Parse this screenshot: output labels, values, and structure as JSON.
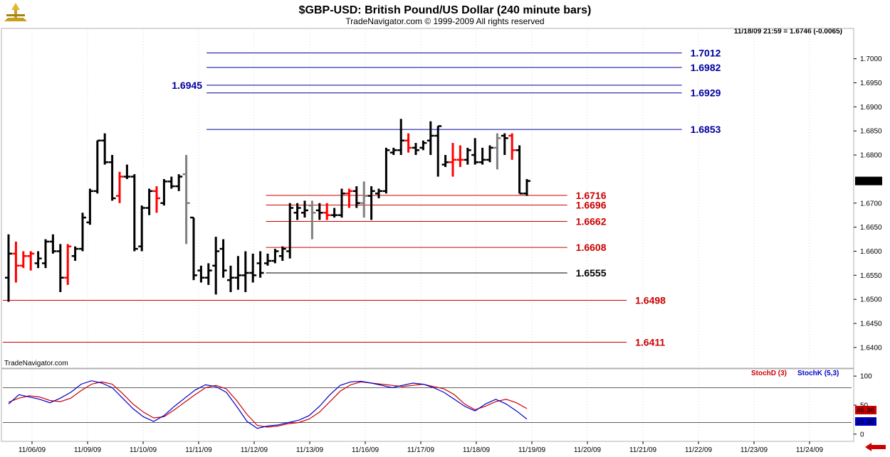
{
  "title": "$GBP-USD:  British Pound/US Dollar  (240 minute bars)",
  "subtitle": "TradeNavigator.com © 1999-2009 All rights reserved",
  "watermark": "TradeNavigator.com",
  "last_bar_info": "11/18/09 21:59 = 1.6746 (-0.0065)",
  "colors": {
    "up": "#000000",
    "down": "#ff0000",
    "neutral": "#808080",
    "blue_level": "#0000a0",
    "red_level": "#cc0000",
    "stoch_d": "#cc0000",
    "stoch_k": "#0000cc"
  },
  "chart_data": [
    {
      "type": "ohlc",
      "y_range": [
        1.636,
        1.706
      ],
      "y_ticks": [
        "1.7000",
        "1.6950",
        "1.6900",
        "1.6850",
        "1.6800",
        "1.6700",
        "1.6650",
        "1.6600",
        "1.6550",
        "1.6500",
        "1.6450",
        "1.6400"
      ],
      "y_tick_values": [
        1.7,
        1.695,
        1.69,
        1.685,
        1.68,
        1.67,
        1.665,
        1.66,
        1.655,
        1.65,
        1.645,
        1.64
      ],
      "last_price_label": "1.6746",
      "last_price": 1.6746,
      "x_dates": [
        "11/06/09",
        "11/09/09",
        "11/10/09",
        "11/11/09",
        "11/12/09",
        "11/13/09",
        "11/16/09",
        "11/17/09",
        "11/18/09",
        "11/19/09",
        "11/20/09",
        "11/21/09",
        "11/22/09",
        "11/23/09",
        "11/24/09"
      ],
      "bars": [
        {
          "o": 1.6545,
          "h": 1.6635,
          "l": 1.6495,
          "c": 1.6595,
          "col": "up"
        },
        {
          "o": 1.6595,
          "h": 1.662,
          "l": 1.6535,
          "c": 1.657,
          "col": "down"
        },
        {
          "o": 1.657,
          "h": 1.66,
          "l": 1.6565,
          "c": 1.659,
          "col": "down"
        },
        {
          "o": 1.659,
          "h": 1.66,
          "l": 1.656,
          "c": 1.6595,
          "col": "down"
        },
        {
          "o": 1.6575,
          "h": 1.66,
          "l": 1.6565,
          "c": 1.6585,
          "col": "up"
        },
        {
          "o": 1.6575,
          "h": 1.6625,
          "l": 1.6565,
          "c": 1.662,
          "col": "up"
        },
        {
          "o": 1.662,
          "h": 1.6635,
          "l": 1.6595,
          "c": 1.66,
          "col": "up"
        },
        {
          "o": 1.66,
          "h": 1.6615,
          "l": 1.6515,
          "c": 1.6545,
          "col": "up"
        },
        {
          "o": 1.6545,
          "h": 1.6615,
          "l": 1.653,
          "c": 1.661,
          "col": "down"
        },
        {
          "o": 1.659,
          "h": 1.661,
          "l": 1.658,
          "c": 1.6605,
          "col": "up"
        },
        {
          "o": 1.6605,
          "h": 1.668,
          "l": 1.66,
          "c": 1.667,
          "col": "up"
        },
        {
          "o": 1.666,
          "h": 1.673,
          "l": 1.6655,
          "c": 1.6725,
          "col": "up"
        },
        {
          "o": 1.6725,
          "h": 1.683,
          "l": 1.672,
          "c": 1.683,
          "col": "up"
        },
        {
          "o": 1.683,
          "h": 1.6845,
          "l": 1.678,
          "c": 1.6785,
          "col": "up"
        },
        {
          "o": 1.6785,
          "h": 1.68,
          "l": 1.6705,
          "c": 1.671,
          "col": "up"
        },
        {
          "o": 1.6715,
          "h": 1.6765,
          "l": 1.67,
          "c": 1.6755,
          "col": "down"
        },
        {
          "o": 1.6755,
          "h": 1.678,
          "l": 1.675,
          "c": 1.6755,
          "col": "up"
        },
        {
          "o": 1.6755,
          "h": 1.676,
          "l": 1.66,
          "c": 1.6605,
          "col": "up"
        },
        {
          "o": 1.661,
          "h": 1.6695,
          "l": 1.66,
          "c": 1.669,
          "col": "up"
        },
        {
          "o": 1.669,
          "h": 1.673,
          "l": 1.6675,
          "c": 1.6725,
          "col": "up"
        },
        {
          "o": 1.6725,
          "h": 1.6735,
          "l": 1.668,
          "c": 1.671,
          "col": "down"
        },
        {
          "o": 1.67,
          "h": 1.675,
          "l": 1.6695,
          "c": 1.6745,
          "col": "up"
        },
        {
          "o": 1.6745,
          "h": 1.6755,
          "l": 1.673,
          "c": 1.6735,
          "col": "up"
        },
        {
          "o": 1.6735,
          "h": 1.676,
          "l": 1.6725,
          "c": 1.6755,
          "col": "up"
        },
        {
          "o": 1.676,
          "h": 1.68,
          "l": 1.6615,
          "c": 1.67,
          "col": "neutral"
        },
        {
          "o": 1.667,
          "h": 1.667,
          "l": 1.654,
          "c": 1.655,
          "col": "up"
        },
        {
          "o": 1.656,
          "h": 1.657,
          "l": 1.6535,
          "c": 1.6545,
          "col": "up"
        },
        {
          "o": 1.6545,
          "h": 1.6575,
          "l": 1.653,
          "c": 1.656,
          "col": "up"
        },
        {
          "o": 1.657,
          "h": 1.663,
          "l": 1.651,
          "c": 1.66,
          "col": "up"
        },
        {
          "o": 1.6605,
          "h": 1.6625,
          "l": 1.6545,
          "c": 1.656,
          "col": "up"
        },
        {
          "o": 1.654,
          "h": 1.657,
          "l": 1.6515,
          "c": 1.6545,
          "col": "up"
        },
        {
          "o": 1.6545,
          "h": 1.659,
          "l": 1.652,
          "c": 1.655,
          "col": "up"
        },
        {
          "o": 1.655,
          "h": 1.66,
          "l": 1.6515,
          "c": 1.6555,
          "col": "up"
        },
        {
          "o": 1.6555,
          "h": 1.6595,
          "l": 1.6535,
          "c": 1.655,
          "col": "up"
        },
        {
          "o": 1.6575,
          "h": 1.66,
          "l": 1.6545,
          "c": 1.6555,
          "col": "up"
        },
        {
          "o": 1.6575,
          "h": 1.6595,
          "l": 1.657,
          "c": 1.658,
          "col": "up"
        },
        {
          "o": 1.658,
          "h": 1.6605,
          "l": 1.6575,
          "c": 1.66,
          "col": "up"
        },
        {
          "o": 1.659,
          "h": 1.661,
          "l": 1.658,
          "c": 1.6605,
          "col": "up"
        },
        {
          "o": 1.66,
          "h": 1.67,
          "l": 1.6585,
          "c": 1.669,
          "col": "up"
        },
        {
          "o": 1.668,
          "h": 1.67,
          "l": 1.6665,
          "c": 1.669,
          "col": "up"
        },
        {
          "o": 1.668,
          "h": 1.6705,
          "l": 1.667,
          "c": 1.6685,
          "col": "up"
        },
        {
          "o": 1.6695,
          "h": 1.6705,
          "l": 1.6625,
          "c": 1.668,
          "col": "neutral"
        },
        {
          "o": 1.6685,
          "h": 1.67,
          "l": 1.6665,
          "c": 1.668,
          "col": "up"
        },
        {
          "o": 1.668,
          "h": 1.67,
          "l": 1.6665,
          "c": 1.6675,
          "col": "down"
        },
        {
          "o": 1.6675,
          "h": 1.669,
          "l": 1.667,
          "c": 1.6675,
          "col": "up"
        },
        {
          "o": 1.6675,
          "h": 1.673,
          "l": 1.667,
          "c": 1.672,
          "col": "up"
        },
        {
          "o": 1.672,
          "h": 1.673,
          "l": 1.669,
          "c": 1.6725,
          "col": "down"
        },
        {
          "o": 1.6725,
          "h": 1.6735,
          "l": 1.669,
          "c": 1.67,
          "col": "up"
        },
        {
          "o": 1.67,
          "h": 1.6745,
          "l": 1.667,
          "c": 1.6715,
          "col": "neutral"
        },
        {
          "o": 1.6715,
          "h": 1.6735,
          "l": 1.6665,
          "c": 1.6725,
          "col": "up"
        },
        {
          "o": 1.672,
          "h": 1.673,
          "l": 1.671,
          "c": 1.6725,
          "col": "up"
        },
        {
          "o": 1.6725,
          "h": 1.6815,
          "l": 1.672,
          "c": 1.681,
          "col": "up"
        },
        {
          "o": 1.6805,
          "h": 1.6815,
          "l": 1.68,
          "c": 1.681,
          "col": "up"
        },
        {
          "o": 1.681,
          "h": 1.6875,
          "l": 1.68,
          "c": 1.683,
          "col": "up"
        },
        {
          "o": 1.683,
          "h": 1.6845,
          "l": 1.6805,
          "c": 1.6815,
          "col": "down"
        },
        {
          "o": 1.6815,
          "h": 1.6825,
          "l": 1.68,
          "c": 1.681,
          "col": "up"
        },
        {
          "o": 1.6815,
          "h": 1.683,
          "l": 1.681,
          "c": 1.6825,
          "col": "up"
        },
        {
          "o": 1.683,
          "h": 1.687,
          "l": 1.68,
          "c": 1.684,
          "col": "up"
        },
        {
          "o": 1.684,
          "h": 1.686,
          "l": 1.6755,
          "c": 1.686,
          "col": "up"
        },
        {
          "o": 1.678,
          "h": 1.68,
          "l": 1.6775,
          "c": 1.6785,
          "col": "up"
        },
        {
          "o": 1.6785,
          "h": 1.6825,
          "l": 1.6755,
          "c": 1.679,
          "col": "down"
        },
        {
          "o": 1.679,
          "h": 1.682,
          "l": 1.6775,
          "c": 1.679,
          "col": "down"
        },
        {
          "o": 1.679,
          "h": 1.6815,
          "l": 1.678,
          "c": 1.681,
          "col": "up"
        },
        {
          "o": 1.68,
          "h": 1.6835,
          "l": 1.678,
          "c": 1.6785,
          "col": "up"
        },
        {
          "o": 1.6785,
          "h": 1.6815,
          "l": 1.678,
          "c": 1.679,
          "col": "up"
        },
        {
          "o": 1.679,
          "h": 1.682,
          "l": 1.6785,
          "c": 1.6815,
          "col": "up"
        },
        {
          "o": 1.6815,
          "h": 1.6845,
          "l": 1.677,
          "c": 1.6835,
          "col": "neutral"
        },
        {
          "o": 1.684,
          "h": 1.6845,
          "l": 1.68,
          "c": 1.6835,
          "col": "up"
        },
        {
          "o": 1.684,
          "h": 1.6845,
          "l": 1.679,
          "c": 1.681,
          "col": "down"
        },
        {
          "o": 1.681,
          "h": 1.682,
          "l": 1.672,
          "c": 1.672,
          "col": "up"
        },
        {
          "o": 1.672,
          "h": 1.675,
          "l": 1.6715,
          "c": 1.6746,
          "col": "up"
        }
      ],
      "levels": [
        {
          "value": 1.7012,
          "label": "1.7012",
          "color": "blue",
          "from": 0.24,
          "to": 0.8,
          "label_side": "right"
        },
        {
          "value": 1.6982,
          "label": "1.6982",
          "color": "blue",
          "from": 0.24,
          "to": 0.8,
          "label_side": "right"
        },
        {
          "value": 1.6945,
          "label": "1.6945",
          "color": "blue",
          "from": 0.24,
          "to": 0.8,
          "label_side": "left"
        },
        {
          "value": 1.6929,
          "label": "1.6929",
          "color": "blue",
          "from": 0.24,
          "to": 0.8,
          "label_side": "right"
        },
        {
          "value": 1.6853,
          "label": "1.6853",
          "color": "blue",
          "from": 0.24,
          "to": 0.8,
          "label_side": "right"
        },
        {
          "value": 1.6716,
          "label": "1.6716",
          "color": "red",
          "from": 0.31,
          "to": 0.665,
          "label_side": "right"
        },
        {
          "value": 1.6696,
          "label": "1.6696",
          "color": "red",
          "from": 0.31,
          "to": 0.665,
          "label_side": "right"
        },
        {
          "value": 1.6662,
          "label": "1.6662",
          "color": "red",
          "from": 0.31,
          "to": 0.665,
          "label_side": "right"
        },
        {
          "value": 1.6608,
          "label": "1.6608",
          "color": "red",
          "from": 0.31,
          "to": 0.665,
          "label_side": "right"
        },
        {
          "value": 1.6555,
          "label": "1.6555",
          "color": "black",
          "from": 0.31,
          "to": 0.665,
          "label_side": "right"
        },
        {
          "value": 1.6498,
          "label": "1.6498",
          "color": "red",
          "from": 0.0,
          "to": 0.735,
          "label_side": "right"
        },
        {
          "value": 1.6411,
          "label": "1.6411",
          "color": "red",
          "from": 0.0,
          "to": 0.735,
          "label_side": "right"
        }
      ]
    },
    {
      "type": "line",
      "y_range": [
        -10,
        110
      ],
      "y_ticks": [
        "100",
        "50",
        "0"
      ],
      "y_tick_values": [
        100,
        50,
        0
      ],
      "reference_lines": [
        80,
        20
      ],
      "series": [
        {
          "name": "StochD (3)",
          "color": "red",
          "values": [
            55,
            62,
            66,
            64,
            58,
            56,
            62,
            75,
            86,
            90,
            86,
            70,
            52,
            38,
            28,
            30,
            42,
            55,
            68,
            80,
            84,
            78,
            58,
            34,
            15,
            12,
            14,
            18,
            20,
            26,
            38,
            56,
            74,
            85,
            90,
            88,
            86,
            84,
            82,
            84,
            86,
            82,
            78,
            68,
            52,
            42,
            48,
            56,
            60,
            54,
            44
          ]
        },
        {
          "name": "StochK (5,3)",
          "color": "blue",
          "values": [
            52,
            68,
            64,
            60,
            54,
            62,
            72,
            86,
            92,
            88,
            80,
            62,
            44,
            30,
            22,
            32,
            48,
            62,
            76,
            85,
            82,
            72,
            48,
            22,
            10,
            14,
            16,
            20,
            24,
            32,
            48,
            68,
            84,
            90,
            91,
            88,
            84,
            80,
            84,
            88,
            86,
            80,
            72,
            60,
            48,
            40,
            52,
            60,
            52,
            40,
            26
          ]
        }
      ],
      "last_values": [
        "46.36",
        "25.38"
      ]
    }
  ]
}
